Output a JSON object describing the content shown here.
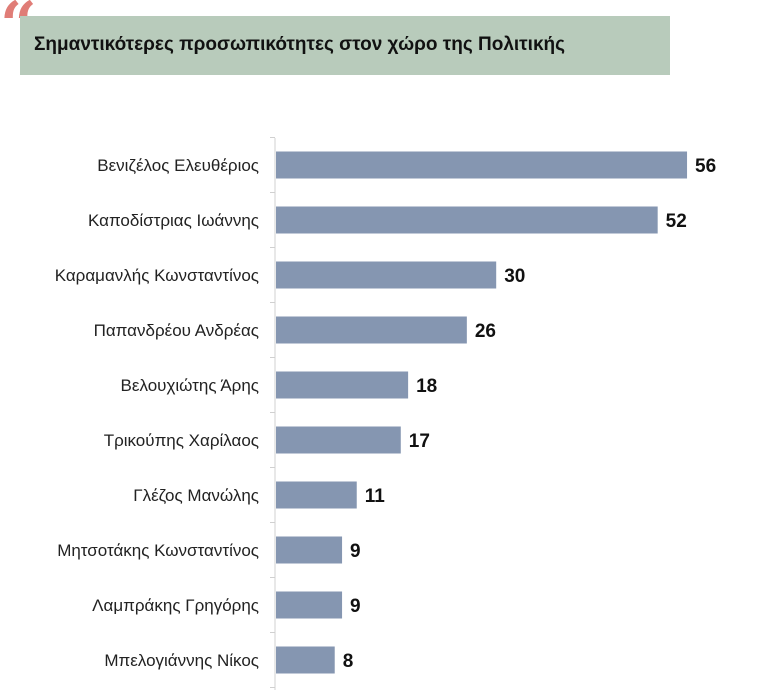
{
  "header": {
    "title": "Σημαντικότερες προσωπικότητες στον χώρο της Πολιτικής",
    "quote_glyph": "“"
  },
  "colors": {
    "bar": "#8596b1",
    "title_bg": "#b8cbbb",
    "quote": "#e07d77",
    "axis": "#d0d0d0"
  },
  "chart_data": {
    "type": "bar",
    "orientation": "horizontal",
    "title": "Σημαντικότερες προσωπικότητες στον χώρο της Πολιτικής",
    "categories": [
      "Βενιζέλος Ελευθέριος",
      "Καποδίστριας Ιωάννης",
      "Καραμανλής Κωνσταντίνος",
      "Παπανδρέου Ανδρέας",
      "Βελουχιώτης Άρης",
      "Τρικούπης Χαρίλαος",
      "Γλέζος Μανώλης",
      "Μητσοτάκης Κωνσταντίνος",
      "Λαμπράκης Γρηγόρης",
      "Μπελογιάννης Νίκος"
    ],
    "values": [
      56,
      52,
      30,
      26,
      18,
      17,
      11,
      9,
      9,
      8
    ],
    "xlabel": "",
    "ylabel": "",
    "xlim": [
      0,
      60
    ],
    "grid": false,
    "legend": "none"
  }
}
